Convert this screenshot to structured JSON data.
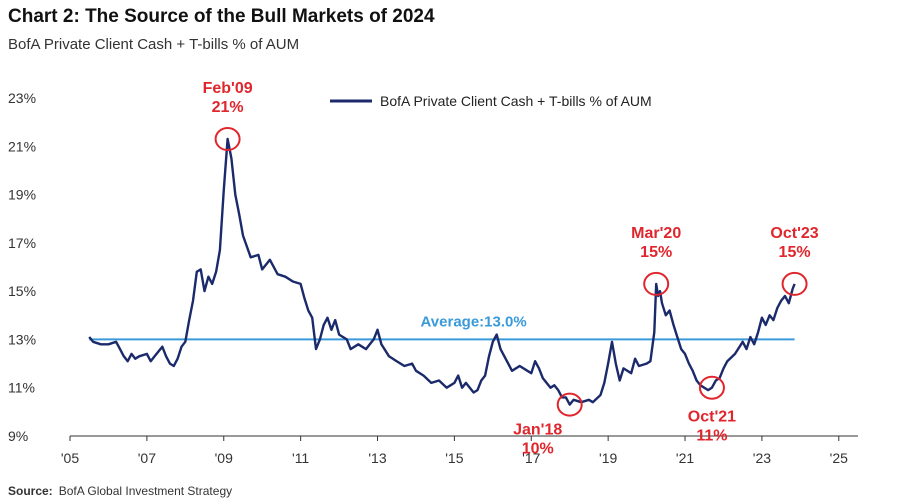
{
  "header": {
    "title": "Chart 2: The Source of the Bull Markets of 2024",
    "subtitle": "BofA Private Client Cash + T-bills % of AUM"
  },
  "footer": {
    "source_label": "Source:",
    "source_text": "BofA Global Investment Strategy"
  },
  "colors": {
    "series": "#1b2a6b",
    "average": "#3a9ad9",
    "annotation": "#e0262d",
    "axis": "#333333"
  },
  "chart_data": {
    "type": "line",
    "title": "Chart 2: The Source of the Bull Markets of 2024",
    "subtitle": "BofA Private Client Cash + T-bills % of AUM",
    "xlabel": "",
    "ylabel": "",
    "xlim": [
      2005,
      2025.5
    ],
    "ylim": [
      9,
      23
    ],
    "x_ticks": [
      2005,
      2007,
      2009,
      2011,
      2013,
      2015,
      2017,
      2019,
      2021,
      2023,
      2025
    ],
    "x_tick_labels": [
      "'05",
      "'07",
      "'09",
      "'11",
      "'13",
      "'15",
      "'17",
      "'19",
      "'21",
      "'23",
      "'25"
    ],
    "y_ticks": [
      9,
      11,
      13,
      15,
      17,
      19,
      21,
      23
    ],
    "y_tick_labels": [
      "9%",
      "11%",
      "13%",
      "15%",
      "17%",
      "19%",
      "21%",
      "23%"
    ],
    "grid": false,
    "legend": {
      "position": "top-center",
      "entries": [
        "BofA Private Client Cash + T-bills % of AUM"
      ]
    },
    "series": [
      {
        "name": "BofA Private Client Cash + T-bills % of AUM",
        "points": [
          [
            2005.5,
            13.1
          ],
          [
            2005.6,
            12.9
          ],
          [
            2005.8,
            12.8
          ],
          [
            2006.0,
            12.8
          ],
          [
            2006.2,
            12.9
          ],
          [
            2006.3,
            12.6
          ],
          [
            2006.4,
            12.3
          ],
          [
            2006.5,
            12.1
          ],
          [
            2006.6,
            12.4
          ],
          [
            2006.7,
            12.2
          ],
          [
            2006.8,
            12.3
          ],
          [
            2007.0,
            12.4
          ],
          [
            2007.1,
            12.1
          ],
          [
            2007.2,
            12.3
          ],
          [
            2007.4,
            12.7
          ],
          [
            2007.5,
            12.3
          ],
          [
            2007.6,
            12.0
          ],
          [
            2007.7,
            11.9
          ],
          [
            2007.8,
            12.2
          ],
          [
            2007.9,
            12.7
          ],
          [
            2008.0,
            12.9
          ],
          [
            2008.1,
            13.8
          ],
          [
            2008.2,
            14.6
          ],
          [
            2008.3,
            15.8
          ],
          [
            2008.4,
            15.9
          ],
          [
            2008.5,
            15.0
          ],
          [
            2008.6,
            15.6
          ],
          [
            2008.7,
            15.3
          ],
          [
            2008.8,
            15.8
          ],
          [
            2008.9,
            16.7
          ],
          [
            2009.0,
            19.2
          ],
          [
            2009.1,
            21.3
          ],
          [
            2009.2,
            20.5
          ],
          [
            2009.3,
            19.0
          ],
          [
            2009.4,
            18.2
          ],
          [
            2009.5,
            17.3
          ],
          [
            2009.7,
            16.4
          ],
          [
            2009.9,
            16.5
          ],
          [
            2010.0,
            15.9
          ],
          [
            2010.2,
            16.3
          ],
          [
            2010.4,
            15.7
          ],
          [
            2010.6,
            15.6
          ],
          [
            2010.8,
            15.4
          ],
          [
            2011.0,
            15.3
          ],
          [
            2011.1,
            14.7
          ],
          [
            2011.2,
            14.2
          ],
          [
            2011.3,
            13.9
          ],
          [
            2011.4,
            12.6
          ],
          [
            2011.5,
            13.0
          ],
          [
            2011.6,
            13.6
          ],
          [
            2011.7,
            13.9
          ],
          [
            2011.8,
            13.4
          ],
          [
            2011.9,
            13.8
          ],
          [
            2012.0,
            13.2
          ],
          [
            2012.2,
            13.0
          ],
          [
            2012.3,
            12.6
          ],
          [
            2012.5,
            12.8
          ],
          [
            2012.7,
            12.6
          ],
          [
            2012.8,
            12.8
          ],
          [
            2012.9,
            13.0
          ],
          [
            2013.0,
            13.4
          ],
          [
            2013.1,
            12.8
          ],
          [
            2013.3,
            12.3
          ],
          [
            2013.5,
            12.1
          ],
          [
            2013.7,
            11.9
          ],
          [
            2013.9,
            12.0
          ],
          [
            2014.0,
            11.7
          ],
          [
            2014.2,
            11.5
          ],
          [
            2014.4,
            11.2
          ],
          [
            2014.6,
            11.3
          ],
          [
            2014.8,
            11.0
          ],
          [
            2015.0,
            11.2
          ],
          [
            2015.1,
            11.5
          ],
          [
            2015.2,
            11.0
          ],
          [
            2015.3,
            11.2
          ],
          [
            2015.5,
            10.8
          ],
          [
            2015.6,
            10.9
          ],
          [
            2015.7,
            11.3
          ],
          [
            2015.8,
            11.5
          ],
          [
            2015.9,
            12.3
          ],
          [
            2016.0,
            12.9
          ],
          [
            2016.1,
            13.2
          ],
          [
            2016.2,
            12.6
          ],
          [
            2016.4,
            12.0
          ],
          [
            2016.5,
            11.7
          ],
          [
            2016.7,
            11.9
          ],
          [
            2016.9,
            11.7
          ],
          [
            2017.0,
            11.6
          ],
          [
            2017.1,
            12.1
          ],
          [
            2017.2,
            11.8
          ],
          [
            2017.3,
            11.4
          ],
          [
            2017.5,
            11.0
          ],
          [
            2017.6,
            11.1
          ],
          [
            2017.7,
            10.9
          ],
          [
            2017.8,
            10.6
          ],
          [
            2017.9,
            10.6
          ],
          [
            2018.0,
            10.3
          ],
          [
            2018.1,
            10.5
          ],
          [
            2018.3,
            10.4
          ],
          [
            2018.5,
            10.5
          ],
          [
            2018.6,
            10.4
          ],
          [
            2018.8,
            10.7
          ],
          [
            2018.9,
            11.2
          ],
          [
            2019.0,
            12.0
          ],
          [
            2019.1,
            12.9
          ],
          [
            2019.2,
            12.0
          ],
          [
            2019.3,
            11.3
          ],
          [
            2019.4,
            11.8
          ],
          [
            2019.6,
            11.6
          ],
          [
            2019.7,
            12.2
          ],
          [
            2019.8,
            11.9
          ],
          [
            2020.0,
            12.0
          ],
          [
            2020.1,
            12.1
          ],
          [
            2020.2,
            13.3
          ],
          [
            2020.25,
            15.3
          ],
          [
            2020.3,
            14.8
          ],
          [
            2020.35,
            15.0
          ],
          [
            2020.4,
            14.5
          ],
          [
            2020.5,
            14.0
          ],
          [
            2020.6,
            14.2
          ],
          [
            2020.7,
            13.6
          ],
          [
            2020.8,
            13.1
          ],
          [
            2020.9,
            12.6
          ],
          [
            2021.0,
            12.4
          ],
          [
            2021.1,
            12.0
          ],
          [
            2021.2,
            11.7
          ],
          [
            2021.3,
            11.3
          ],
          [
            2021.4,
            11.1
          ],
          [
            2021.5,
            11.0
          ],
          [
            2021.6,
            10.9
          ],
          [
            2021.7,
            11.0
          ],
          [
            2021.8,
            11.3
          ],
          [
            2021.9,
            11.4
          ],
          [
            2022.0,
            11.8
          ],
          [
            2022.1,
            12.1
          ],
          [
            2022.3,
            12.4
          ],
          [
            2022.5,
            12.9
          ],
          [
            2022.6,
            12.6
          ],
          [
            2022.7,
            13.1
          ],
          [
            2022.8,
            12.8
          ],
          [
            2022.9,
            13.3
          ],
          [
            2023.0,
            13.9
          ],
          [
            2023.1,
            13.6
          ],
          [
            2023.2,
            14.0
          ],
          [
            2023.3,
            13.8
          ],
          [
            2023.4,
            14.3
          ],
          [
            2023.5,
            14.6
          ],
          [
            2023.6,
            14.8
          ],
          [
            2023.7,
            14.5
          ],
          [
            2023.8,
            15.1
          ],
          [
            2023.85,
            15.3
          ]
        ]
      }
    ],
    "reference_lines": [
      {
        "label": "Average:13.0%",
        "y": 13.0,
        "x_start": 2005.5,
        "x_end": 2023.85
      }
    ],
    "annotations": [
      {
        "label": "Feb'09",
        "value_label": "21%",
        "x": 2009.1,
        "y": 21.3,
        "label_position": "above"
      },
      {
        "label": "Jan'18",
        "value_label": "10%",
        "x": 2018.0,
        "y": 10.3,
        "label_position": "below-left"
      },
      {
        "label": "Mar'20",
        "value_label": "15%",
        "x": 2020.25,
        "y": 15.3,
        "label_position": "above"
      },
      {
        "label": "Oct'21",
        "value_label": "11%",
        "x": 2021.7,
        "y": 11.0,
        "label_position": "below"
      },
      {
        "label": "Oct'23",
        "value_label": "15%",
        "x": 2023.85,
        "y": 15.3,
        "label_position": "above"
      }
    ]
  }
}
